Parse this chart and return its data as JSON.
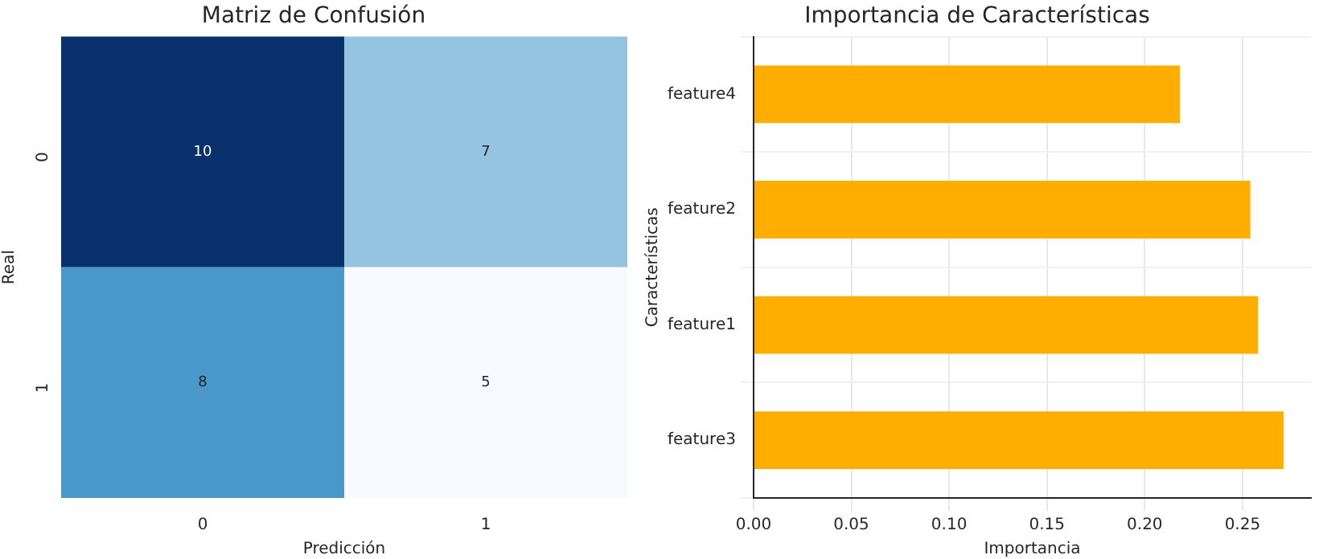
{
  "chart_data": [
    {
      "type": "heatmap",
      "title": "Matriz de Confusión",
      "xlabel": "Predicción",
      "ylabel": "Real",
      "categories": [
        "0",
        "1"
      ],
      "y_categories": [
        "0",
        "1"
      ],
      "cells": [
        [
          10,
          7
        ],
        [
          8,
          5
        ]
      ],
      "colors": [
        [
          "#08306b",
          "#94c4df"
        ],
        [
          "#4a98c9",
          "#f7fbff"
        ]
      ],
      "data_labels": true
    },
    {
      "type": "bar",
      "orientation": "horizontal",
      "title": "Importancia de Características",
      "xlabel": "Importancia",
      "ylabel": "Características",
      "categories": [
        "feature4",
        "feature2",
        "feature1",
        "feature3"
      ],
      "values": [
        0.218,
        0.254,
        0.258,
        0.271
      ],
      "color": "#ffae00",
      "xlim": [
        0,
        0.285
      ],
      "xticks": [
        {
          "value": 0,
          "label": "0.00"
        },
        {
          "value": 0.05,
          "label": "0.05"
        },
        {
          "value": 0.1,
          "label": "0.10"
        },
        {
          "value": 0.15,
          "label": "0.15"
        },
        {
          "value": 0.2,
          "label": "0.20"
        },
        {
          "value": 0.25,
          "label": "0.25"
        }
      ],
      "grid": true,
      "legend": false
    }
  ]
}
